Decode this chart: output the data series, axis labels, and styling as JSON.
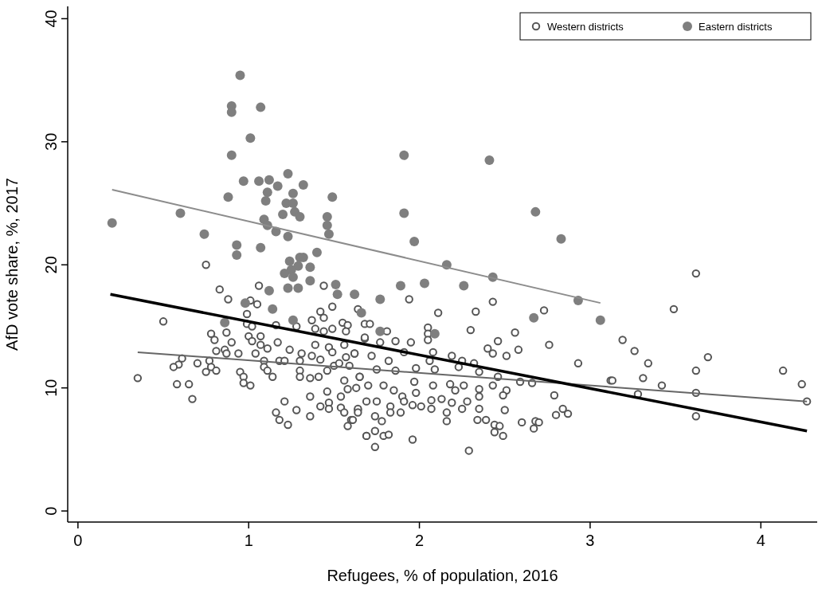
{
  "chart_data": {
    "type": "scatter",
    "xlabel": "Refugees, % of population, 2016",
    "ylabel": "AfD vote share, %, 2017",
    "xlim": [
      -0.06,
      4.33
    ],
    "ylim": [
      -0.9,
      41
    ],
    "xticks": [
      0,
      1,
      2,
      3,
      4
    ],
    "yticks": [
      0,
      10,
      20,
      30,
      40
    ],
    "grid": false,
    "legend": "top right",
    "marker": "circle",
    "series": [
      {
        "name": "Western districts",
        "color": "#555555",
        "x": [
          0.75,
          0.83,
          1.06,
          0.88,
          1.05,
          1.01,
          1.44,
          1.49,
          1.42,
          1.44,
          1.64,
          0.5,
          0.99,
          0.99,
          1.02,
          1.16,
          1.28,
          1.37,
          1.39,
          1.44,
          1.49,
          1.55,
          1.58,
          1.57,
          1.68,
          0.78,
          0.87,
          0.8,
          0.9,
          1.0,
          1.07,
          1.02,
          1.07,
          1.11,
          1.17,
          1.24,
          1.39,
          1.47,
          1.49,
          1.56,
          1.62,
          1.68,
          0.81,
          0.86,
          0.87,
          0.94,
          1.04,
          1.31,
          1.37,
          1.42,
          1.18,
          1.21,
          1.3,
          1.57,
          0.61,
          0.59,
          0.56,
          0.7,
          0.77,
          0.78,
          0.75,
          0.81,
          1.09,
          1.09,
          1.11,
          1.14,
          0.95,
          0.97,
          0.97,
          1.01,
          0.35,
          0.58,
          0.65,
          0.67,
          1.3,
          1.3,
          1.36,
          1.41,
          1.46,
          1.5,
          1.53,
          1.59,
          1.56,
          1.58,
          1.63,
          1.65,
          1.46,
          1.54,
          1.36,
          1.21,
          1.16,
          1.18,
          1.23,
          1.28,
          1.36,
          1.42,
          1.47,
          1.47,
          1.54,
          1.56,
          1.6,
          1.58,
          1.64,
          1.69,
          1.94,
          2.43,
          2.33,
          2.11,
          2.73,
          1.71,
          1.81,
          2.05,
          2.05,
          2.3,
          2.56,
          2.05,
          2.46,
          2.76,
          2.4,
          2.58,
          2.43,
          2.51,
          2.93,
          2.19,
          2.25,
          2.32,
          2.08,
          1.86,
          1.95,
          1.91,
          1.77,
          1.68,
          1.62,
          1.72,
          1.82,
          1.98,
          2.06,
          2.09,
          2.23,
          2.35,
          2.46,
          2.59,
          2.66,
          3.12,
          1.75,
          1.86,
          1.65,
          1.7,
          1.79,
          1.85,
          1.9,
          1.98,
          1.97,
          2.08,
          2.18,
          2.26,
          2.35,
          2.43,
          2.51,
          2.49,
          2.35,
          2.21,
          2.13,
          2.07,
          2.01,
          1.96,
          1.91,
          1.83,
          1.75,
          1.69,
          1.64,
          1.74,
          1.78,
          1.89,
          1.83,
          2.07,
          2.16,
          2.16,
          2.28,
          2.25,
          2.19,
          2.35,
          2.5,
          2.34,
          2.39,
          2.44,
          2.47,
          2.44,
          2.49,
          2.6,
          2.68,
          2.7,
          2.67,
          2.79,
          2.84,
          2.8,
          2.87,
          1.69,
          1.74,
          1.79,
          1.82,
          1.74,
          1.96,
          2.29,
          1.61,
          1.64,
          3.62,
          3.49,
          3.19,
          3.26,
          3.34,
          3.69,
          3.62,
          4.13,
          4.24,
          4.27,
          3.13,
          3.31,
          3.42,
          3.28,
          3.62,
          3.62
        ],
        "values": [
          20.0,
          18.0,
          18.3,
          17.2,
          16.8,
          17.1,
          18.3,
          16.6,
          16.2,
          15.7,
          16.4,
          15.4,
          16.0,
          15.2,
          15.0,
          15.1,
          15.0,
          15.5,
          14.8,
          14.6,
          14.8,
          15.3,
          15.1,
          14.6,
          15.2,
          14.4,
          14.5,
          13.9,
          13.7,
          14.2,
          14.2,
          13.8,
          13.5,
          13.2,
          13.7,
          13.1,
          13.5,
          13.3,
          12.9,
          13.5,
          12.8,
          14.0,
          13.0,
          13.1,
          12.8,
          12.8,
          12.8,
          12.8,
          12.6,
          12.3,
          12.2,
          12.2,
          12.2,
          12.5,
          12.4,
          11.9,
          11.7,
          12.0,
          12.2,
          11.7,
          11.3,
          11.4,
          12.2,
          11.7,
          11.4,
          10.9,
          11.3,
          10.9,
          10.4,
          10.2,
          10.8,
          10.3,
          10.3,
          9.1,
          11.4,
          10.9,
          10.8,
          10.9,
          11.4,
          11.8,
          12.0,
          11.8,
          10.6,
          9.9,
          10.0,
          10.9,
          9.7,
          9.3,
          9.3,
          8.9,
          8.0,
          7.4,
          7.0,
          8.2,
          7.7,
          8.5,
          8.8,
          8.3,
          8.4,
          8.0,
          7.4,
          6.9,
          8.2,
          6.1,
          17.2,
          17.0,
          16.2,
          16.1,
          16.3,
          15.2,
          14.6,
          14.9,
          14.4,
          14.7,
          14.5,
          13.9,
          13.8,
          13.5,
          13.2,
          13.1,
          12.8,
          12.6,
          12.0,
          12.6,
          12.2,
          12.0,
          12.9,
          13.8,
          13.7,
          12.9,
          13.7,
          14.1,
          12.8,
          12.6,
          12.2,
          11.6,
          12.2,
          11.5,
          11.7,
          11.3,
          10.9,
          10.5,
          10.4,
          10.6,
          11.5,
          11.4,
          10.9,
          10.2,
          10.2,
          9.8,
          9.3,
          9.6,
          10.5,
          10.2,
          10.3,
          10.2,
          9.9,
          10.2,
          9.8,
          9.4,
          9.3,
          9.8,
          9.1,
          9.0,
          8.5,
          8.6,
          8.9,
          8.5,
          8.9,
          8.9,
          8.3,
          7.7,
          7.3,
          8.0,
          8.0,
          8.3,
          8.0,
          7.3,
          8.9,
          8.3,
          8.8,
          8.3,
          8.2,
          7.4,
          7.4,
          7.0,
          6.9,
          6.4,
          6.1,
          7.2,
          7.3,
          7.2,
          6.7,
          9.4,
          8.3,
          7.8,
          7.9,
          6.1,
          6.5,
          6.1,
          6.2,
          5.2,
          5.8,
          4.9,
          7.4,
          8.0,
          19.3,
          16.4,
          13.9,
          13.0,
          12.0,
          12.5,
          11.4,
          11.4,
          10.3,
          8.9,
          10.6,
          10.8,
          10.2,
          9.5,
          9.6,
          7.7
        ]
      },
      {
        "name": "Eastern districts",
        "color": "#7f7f7f",
        "x": [
          0.95,
          0.9,
          0.9,
          1.07,
          1.01,
          0.9,
          0.97,
          1.06,
          1.12,
          1.23,
          1.17,
          1.32,
          1.11,
          1.26,
          0.88,
          1.49,
          1.1,
          1.22,
          1.26,
          1.27,
          1.2,
          1.3,
          1.46,
          0.6,
          0.2,
          1.09,
          1.11,
          1.46,
          1.16,
          1.23,
          1.47,
          0.74,
          0.93,
          0.93,
          1.07,
          1.4,
          1.3,
          1.32,
          1.24,
          1.29,
          1.36,
          1.25,
          1.21,
          1.26,
          1.36,
          1.12,
          1.23,
          1.29,
          1.51,
          1.52,
          1.62,
          0.98,
          1.14,
          1.26,
          0.86,
          1.66,
          1.91,
          2.41,
          1.91,
          2.68,
          2.83,
          1.97,
          2.16,
          2.43,
          1.89,
          2.03,
          2.26,
          1.77,
          2.93,
          3.06,
          2.67,
          1.77,
          2.09
        ],
        "values": [
          35.4,
          32.9,
          32.4,
          32.8,
          30.3,
          28.9,
          26.8,
          26.8,
          26.9,
          27.4,
          26.4,
          26.5,
          25.9,
          25.8,
          25.5,
          25.5,
          25.2,
          25.0,
          25.0,
          24.3,
          24.1,
          23.9,
          23.9,
          24.2,
          23.4,
          23.7,
          23.2,
          23.2,
          22.7,
          22.3,
          22.5,
          22.5,
          21.6,
          20.8,
          21.4,
          21.0,
          20.6,
          20.6,
          20.3,
          19.9,
          19.8,
          19.6,
          19.3,
          19.0,
          18.7,
          17.9,
          18.1,
          18.1,
          18.4,
          17.6,
          17.6,
          16.9,
          16.4,
          15.5,
          15.3,
          16.1,
          28.9,
          28.5,
          24.2,
          24.3,
          22.1,
          21.9,
          20.0,
          19.0,
          18.3,
          18.5,
          18.3,
          17.2,
          17.1,
          15.5,
          15.7,
          14.6,
          14.4
        ]
      },
      {
        "type": "line",
        "marker": "none",
        "color": "#8c8c8c",
        "x": [
          0.2,
          3.06
        ],
        "values": [
          26.1,
          16.9
        ]
      },
      {
        "type": "line",
        "marker": "none",
        "color": "#666666",
        "x": [
          0.35,
          4.27
        ],
        "values": [
          12.9,
          8.9
        ]
      },
      {
        "type": "line",
        "marker": "none",
        "color": "#000000",
        "x": [
          0.19,
          4.27
        ],
        "values": [
          17.6,
          6.5
        ]
      }
    ]
  }
}
